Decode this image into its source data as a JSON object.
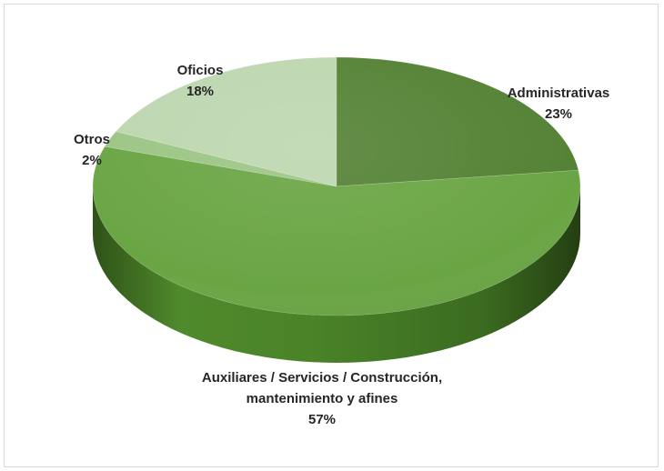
{
  "chart_data": {
    "type": "pie",
    "title": "",
    "style": "3d-pie",
    "slices": [
      {
        "label_lines": [
          "Administrativas"
        ],
        "value": 23,
        "percent_label": "23%",
        "color": "#548235"
      },
      {
        "label_lines": [
          "Auxiliares / Servicios / Construcción,",
          "mantenimiento y afines"
        ],
        "value": 57,
        "percent_label": "57%",
        "color": "#6aa544"
      },
      {
        "label_lines": [
          "Otros"
        ],
        "value": 2,
        "percent_label": "2%",
        "color": "#9cc585"
      },
      {
        "label_lines": [
          "Oficios"
        ],
        "value": 18,
        "percent_label": "18%",
        "color": "#bdd7b0"
      }
    ],
    "legend": "none",
    "data_labels": "category name and percentage, outside the slices"
  }
}
